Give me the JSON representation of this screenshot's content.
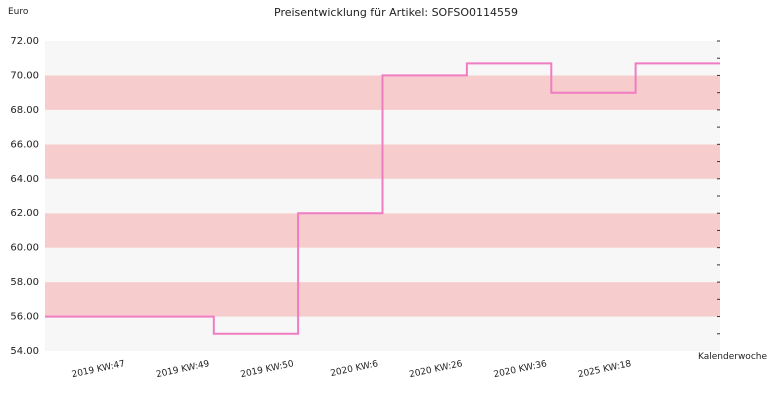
{
  "chart_data": {
    "type": "line",
    "title": "Preisentwicklung für Artikel: SOFSO0114559",
    "ylabel": "Euro",
    "xlabel": "Kalenderwoche",
    "ylim": [
      54,
      72
    ],
    "yticks": [
      "54.00",
      "56.00",
      "58.00",
      "60.00",
      "62.00",
      "64.00",
      "66.00",
      "68.00",
      "70.00",
      "72.00"
    ],
    "categories": [
      "2019 KW:47",
      "2019 KW:49",
      "2019 KW:50",
      "2020 KW:6",
      "2020 KW:26",
      "2020 KW:36",
      "2025 KW:18"
    ],
    "series": [
      {
        "values": [
          56.0,
          55.0,
          62.0,
          70.0,
          70.7,
          69.0,
          70.7
        ]
      }
    ],
    "step": true,
    "band_colors": [
      "#f7f7f7",
      "#f7cccc"
    ],
    "line_color": "#f07cc2",
    "grid": false
  }
}
